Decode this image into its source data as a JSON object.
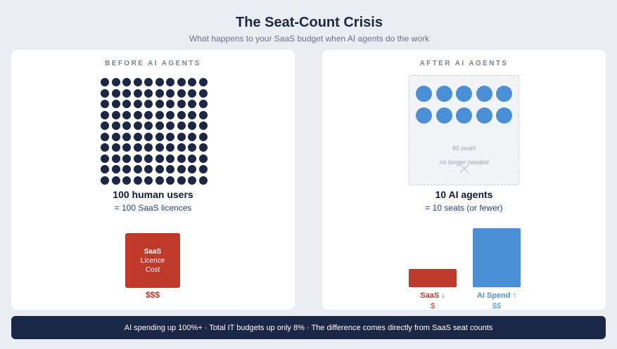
{
  "header": {
    "title": "The Seat-Count Crisis",
    "subtitle": "What happens to your SaaS budget when AI agents do the work"
  },
  "before": {
    "heading": "BEFORE AI AGENTS",
    "user_count": 100,
    "count_title": "100 human users",
    "count_sub": "= 100 SaaS licences",
    "cost_box": {
      "line1": "SaaS",
      "line2": "Licence",
      "line3": "Cost"
    },
    "cost_label": "$$$",
    "dot_color": "#1c2746",
    "cost_color": "#c0392b"
  },
  "after": {
    "heading": "AFTER AI AGENTS",
    "agent_count": 10,
    "seats_note_line1": "90 seats",
    "seats_note_line2": "no longer needed",
    "removed_icon": "close-icon",
    "count_title": "10 AI agents",
    "count_sub": "= 10 seats (or fewer)",
    "saas_label": "SaaS ↓",
    "saas_amount": "$",
    "ai_label": "AI Spend ↑",
    "ai_amount": "$$",
    "agent_color": "#4a90d9",
    "saas_color": "#c0392b"
  },
  "footer": {
    "text": "AI spending up 100%+ · Total IT budgets up only 8% · The difference comes directly from SaaS seat counts"
  }
}
